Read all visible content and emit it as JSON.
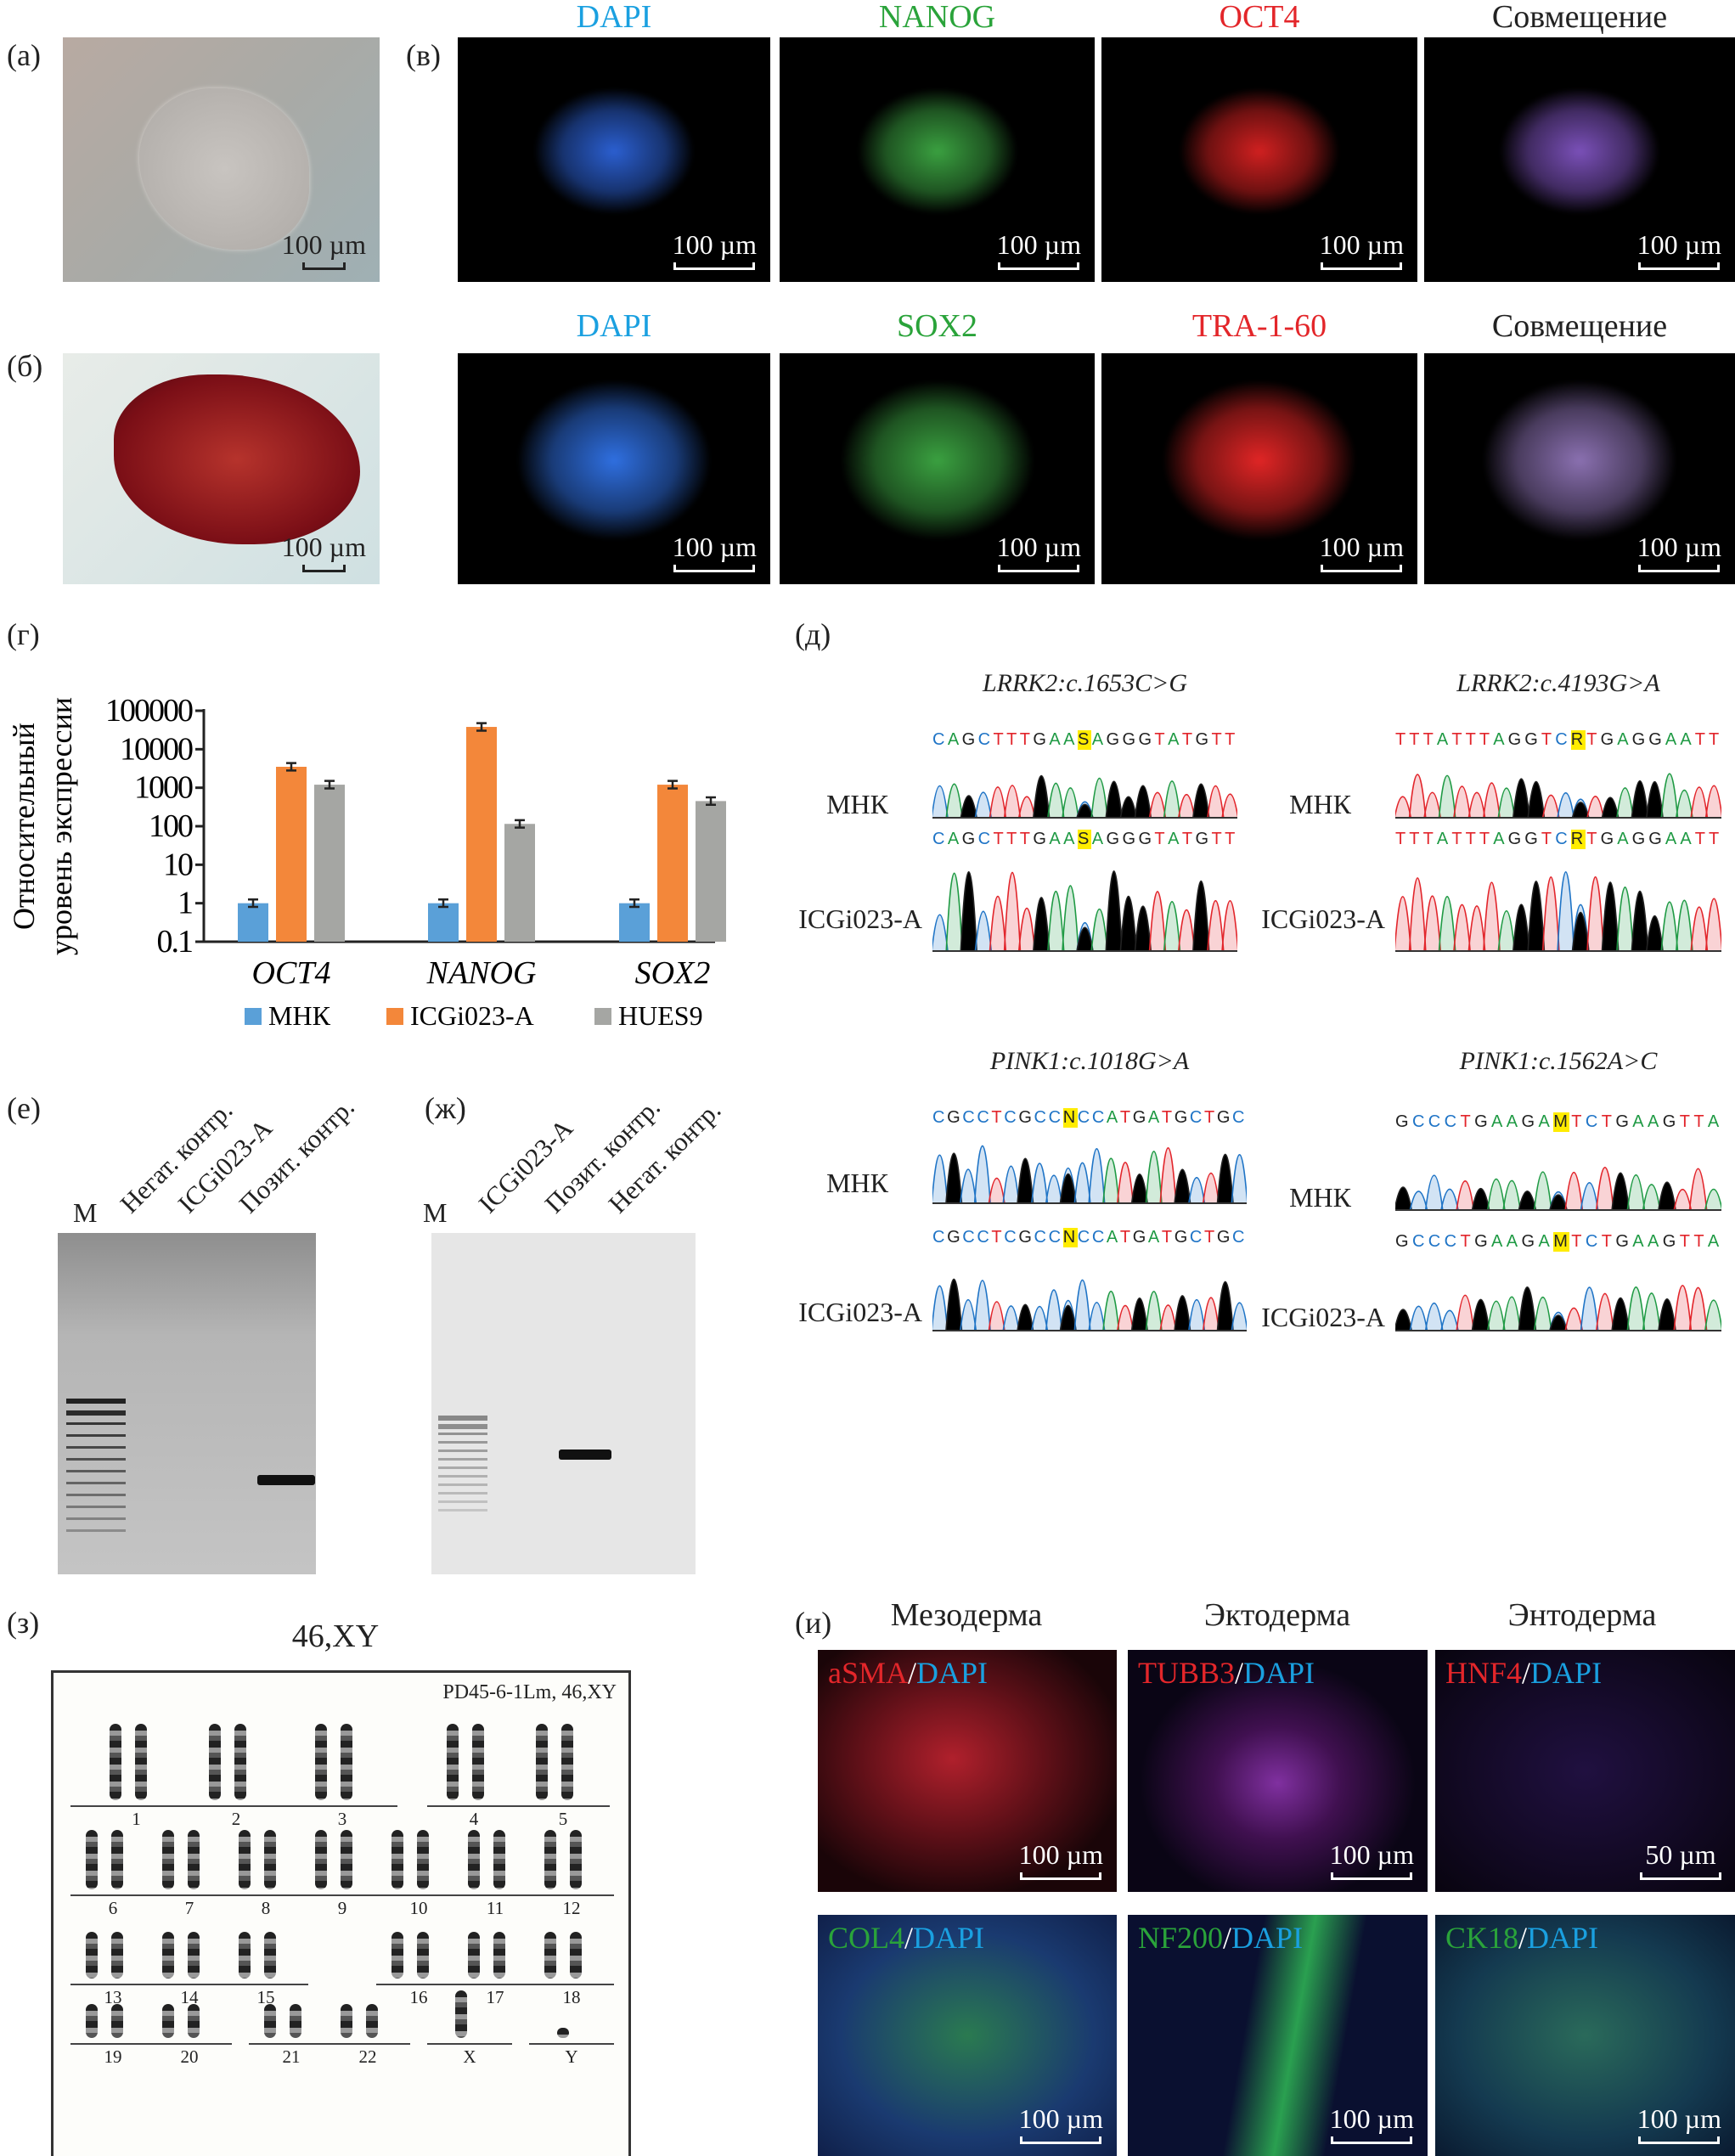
{
  "panels": {
    "a": "(а)",
    "b": "(б)",
    "v": "(в)",
    "g": "(г)",
    "d": "(д)",
    "e": "(е)",
    "zh": "(ж)",
    "z": "(з)",
    "i": "(и)"
  },
  "scale_100": "100 µm",
  "scale_50": "50 µm",
  "row1_headers": [
    {
      "text": "DAPI",
      "color": "#1aa0e0"
    },
    {
      "text": "NANOG",
      "color": "#2aa33a"
    },
    {
      "text": "OCT4",
      "color": "#e3262a"
    },
    {
      "text": "Совмещение",
      "color": "#222222"
    }
  ],
  "row2_headers": [
    {
      "text": "DAPI",
      "color": "#1aa0e0"
    },
    {
      "text": "SOX2",
      "color": "#2aa33a"
    },
    {
      "text": "TRA-1-60",
      "color": "#e3262a"
    },
    {
      "text": "Совмещение",
      "color": "#222222"
    }
  ],
  "chart_data": {
    "type": "bar",
    "ylabel_line1": "Относительный",
    "ylabel_line2": "уровень экспрессии",
    "yscale": "log",
    "ylim": [
      0.1,
      100000
    ],
    "yticks": [
      "100000",
      "10000",
      "1000",
      "100",
      "10",
      "1",
      "0.1"
    ],
    "categories": [
      "OCT4",
      "NANOG",
      "SOX2"
    ],
    "series": [
      {
        "name": "МНК",
        "color": "#5aa0d8",
        "values": [
          1,
          1,
          1
        ]
      },
      {
        "name": "ICGi023-A",
        "color": "#f3873a",
        "values": [
          3500,
          38000,
          1200
        ]
      },
      {
        "name": "HUES9",
        "color": "#a5a6a3",
        "values": [
          1200,
          115,
          450
        ]
      }
    ],
    "legend": "bottom"
  },
  "sanger": {
    "row_labels": {
      "mnk": "МНК",
      "icg": "ICGi023-A"
    },
    "variants": [
      {
        "title": "LRRK2:c.1653C>G",
        "seq": "CAGCTTTGAASAGGGTATGTT",
        "hl": 10
      },
      {
        "title": "LRRK2:c.4193G>A",
        "seq": "TTTATTTAGGTCRTGAGGAATT",
        "hl": 12
      },
      {
        "title": "PINK1:c.1018G>A",
        "seq": "CGCCTCGCCNCCATGATGCTGC",
        "hl": 9
      },
      {
        "title": "PINK1:c.1562A>C",
        "seq": "GCCCTGAAGAMTCTGAAGTTA",
        "hl": 10
      }
    ]
  },
  "gel_e": {
    "lanes": [
      "М",
      "Негат. контр.",
      "ICGi023-A",
      "Позит. контр."
    ]
  },
  "gel_zh": {
    "lanes": [
      "М",
      "ICGi023-A",
      "Позит. контр.",
      "Негат. контр."
    ]
  },
  "karyotype": {
    "title": "46,XY",
    "caption": "PD45-6-1Lm, 46,XY",
    "rows": [
      [
        "1",
        "2",
        "3",
        "4",
        "5"
      ],
      [
        "6",
        "7",
        "8",
        "9",
        "10",
        "11",
        "12"
      ],
      [
        "13",
        "14",
        "15",
        "16",
        "17",
        "18"
      ],
      [
        "19",
        "20",
        "21",
        "22",
        "X",
        "Y"
      ]
    ]
  },
  "differentiation": {
    "headers": [
      "Мезодерма",
      "Эктодерма",
      "Энтодерма"
    ],
    "images": [
      {
        "marker": "aSMA",
        "marker_color": "#e3262a",
        "scale": "100 µm"
      },
      {
        "marker": "TUBB3",
        "marker_color": "#e3262a",
        "scale": "100 µm"
      },
      {
        "marker": "HNF4",
        "marker_color": "#e3262a",
        "scale": "50 µm"
      },
      {
        "marker": "COL4",
        "marker_color": "#2aa33a",
        "scale": "100 µm"
      },
      {
        "marker": "NF200",
        "marker_color": "#2aa33a",
        "scale": "100 µm"
      },
      {
        "marker": "CK18",
        "marker_color": "#2aa33a",
        "scale": "100 µm"
      }
    ],
    "counterstain": "DAPI",
    "counterstain_color": "#1aa0e0",
    "separator": "/"
  }
}
